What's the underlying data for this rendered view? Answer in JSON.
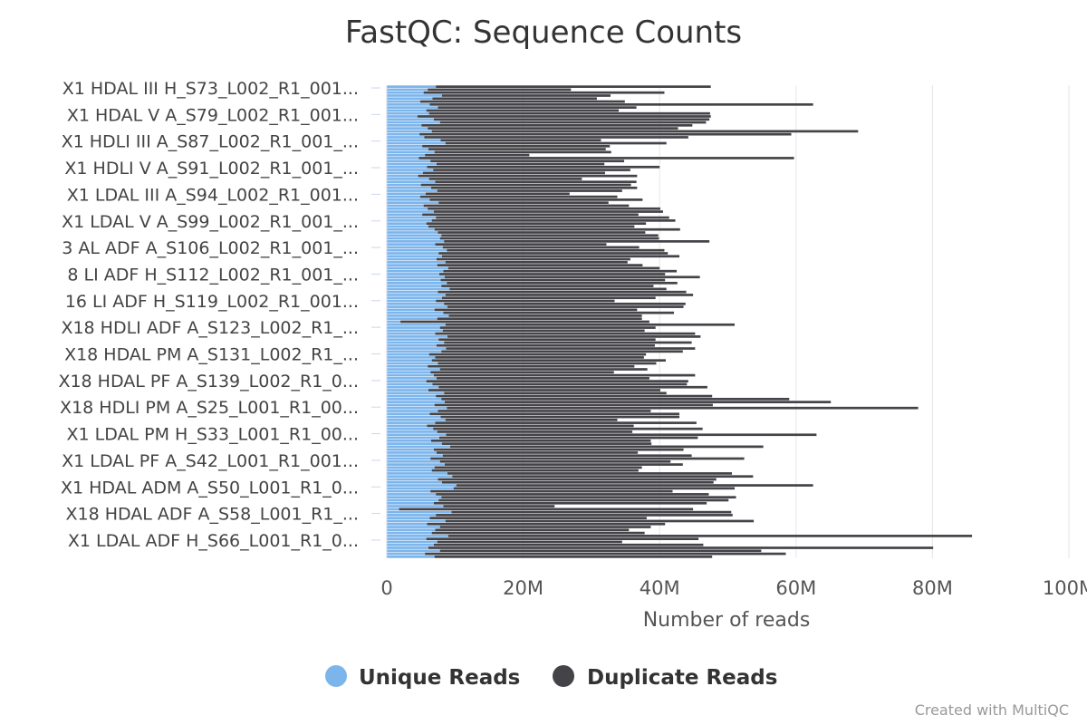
{
  "chart_data": {
    "type": "bar",
    "orientation": "horizontal",
    "stacked": true,
    "title": "FastQC: Sequence Counts",
    "xlabel": "Number of reads",
    "xlim": [
      0,
      100
    ],
    "x_unit": "M",
    "x_ticks": [
      "0",
      "20M",
      "40M",
      "60M",
      "80M",
      "100M"
    ],
    "y_tick_labels": [
      "X1 HDAL III H_S73_L002_R1_001...",
      "X1 HDAL V A_S79_L002_R1_001...",
      "X1 HDLI III A_S87_L002_R1_001_...",
      "X1 HDLI V A_S91_L002_R1_001_...",
      "X1 LDAL III A_S94_L002_R1_001...",
      "X1 LDAL V A_S99_L002_R1_001_...",
      "3 AL ADF A_S106_L002_R1_001_...",
      "8 LI ADF H_S112_L002_R1_001_...",
      "16 LI ADF H_S119_L002_R1_001...",
      "X18 HDLI ADF A_S123_L002_R1_...",
      "X18 HDAL PM A_S131_L002_R1_...",
      "X18 HDAL PF A_S139_L002_R1_0...",
      "X18 HDLI PM A_S25_L001_R1_00...",
      "X1 LDAL PM H_S33_L001_R1_00...",
      "X1 LDAL PF A_S42_L001_R1_001...",
      "X1 HDAL ADM A_S50_L001_R1_0...",
      "X18 HDAL ADF A_S58_L001_R1_...",
      "X1 LDAL ADF H_S66_L001_R1_0..."
    ],
    "series": [
      {
        "name": "Unique Reads",
        "color": "#7cb5ec",
        "values": [
          7.2,
          6.0,
          5.4,
          8.1,
          6.7,
          4.9,
          6.3,
          7.5,
          5.8,
          6.2,
          4.5,
          6.9,
          7.8,
          5.1,
          6.0,
          6.6,
          4.8,
          5.5,
          7.9,
          8.6,
          5.2,
          6.1,
          7.0,
          5.6,
          4.7,
          6.4,
          7.3,
          5.9,
          6.8,
          5.3,
          4.6,
          6.2,
          7.1,
          5.0,
          6.5,
          7.4,
          5.7,
          4.9,
          6.3,
          7.6,
          5.4,
          6.0,
          6.9,
          5.2,
          7.2,
          6.6,
          5.8,
          6.1,
          7.0,
          7.5,
          8.0,
          7.8,
          8.4,
          7.1,
          8.2,
          8.8,
          7.6,
          8.1,
          7.3,
          8.6,
          7.4,
          9.0,
          8.3,
          7.7,
          8.5,
          7.9,
          8.8,
          8.0,
          9.2,
          7.5,
          8.6,
          8.1,
          7.2,
          8.4,
          8.9,
          7.0,
          8.3,
          9.1,
          7.4,
          2.0,
          8.6,
          7.8,
          8.2,
          7.1,
          8.9,
          7.6,
          8.4,
          7.3,
          8.7,
          8.0,
          6.2,
          7.1,
          6.6,
          7.5,
          6.0,
          7.8,
          6.4,
          6.9,
          7.3,
          5.8,
          6.7,
          7.6,
          6.1,
          8.4,
          7.2,
          8.0,
          8.5,
          7.0,
          8.8,
          7.5,
          6.3,
          7.9,
          8.6,
          7.1,
          5.9,
          6.8,
          7.4,
          8.7,
          7.7,
          6.5,
          8.1,
          9.3,
          6.9,
          7.3,
          8.2,
          6.4,
          7.8,
          8.5,
          7.0,
          6.6,
          8.9,
          9.6,
          7.5,
          8.1,
          10.2,
          9.8,
          6.4,
          7.2,
          8.0,
          7.6,
          6.9,
          8.3,
          1.8,
          9.5,
          7.2,
          6.3,
          8.6,
          5.9,
          7.8,
          7.1,
          6.6,
          9.0,
          5.8,
          7.4,
          6.9,
          6.1,
          7.8,
          5.6,
          7.0
        ],
        "values_rest": []
      },
      {
        "name": "Duplicate Reads",
        "color": "#434348",
        "values": [
          40.3,
          21.0,
          35.3,
          24.7,
          24.1,
          30.0,
          56.2,
          29.1,
          28.2,
          41.2,
          43.0,
          40.4,
          39.0,
          39.7,
          36.7,
          62.5,
          54.5,
          38.7,
          23.5,
          32.4,
          27.5,
          26.0,
          25.9,
          15.3,
          55.0,
          28.4,
          24.6,
          34.1,
          28.9,
          26.7,
          32.1,
          22.4,
          29.5,
          30.8,
          30.2,
          27.1,
          21.1,
          28.9,
          31.2,
          24.9,
          30.1,
          34.1,
          33.6,
          31.7,
          34.2,
          35.7,
          32.2,
          30.2,
          36.0,
          30.4,
          31.8,
          32.1,
          38.9,
          25.1,
          28.8,
          31.9,
          33.6,
          34.8,
          28.4,
          26.7,
          30.1,
          31.0,
          34.2,
          33.1,
          37.4,
          32.9,
          33.8,
          31.1,
          31.8,
          36.4,
          36.3,
          31.3,
          26.2,
          35.4,
          34.6,
          29.7,
          33.8,
          28.3,
          30.0,
          36.5,
          42.4,
          31.6,
          29.6,
          38.1,
          37.1,
          31.8,
          36.3,
          32.0,
          36.5,
          35.4,
          31.8,
          30.6,
          34.3,
          32.0,
          30.3,
          30.4,
          26.9,
          38.3,
          31.2,
          38.4,
          37.3,
          39.4,
          34.0,
          32.6,
          40.5,
          51.0,
          56.6,
          40.8,
          69.1,
          31.2,
          36.6,
          35.0,
          25.2,
          38.3,
          30.3,
          39.5,
          28.6,
          54.3,
          37.9,
          32.2,
          30.7,
          45.9,
          36.6,
          29.5,
          36.5,
          46.0,
          33.8,
          34.9,
          30.4,
          30.3,
          41.7,
          44.1,
          40.8,
          39.8,
          52.3,
          41.2,
          35.5,
          40.0,
          43.2,
          42.5,
          40.0,
          16.3,
          43.1,
          41.0,
          43.5,
          31.8,
          45.2,
          34.9,
          30.9,
          28.4,
          31.2,
          76.8,
          39.9,
          27.1,
          39.5,
          74.0,
          47.1,
          52.9,
          40.7
        ],
        "values_rest": []
      }
    ],
    "legend": {
      "position": "bottom",
      "entries": [
        "Unique Reads",
        "Duplicate Reads"
      ]
    },
    "grid": true
  },
  "credit": "Created with MultiQC"
}
